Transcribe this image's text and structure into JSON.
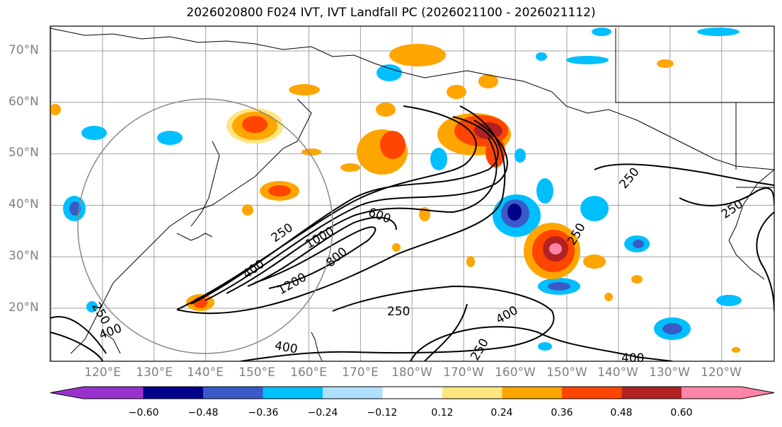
{
  "title": "2026020800 F024 IVT, IVT Landfall PC (2026021100 - 2026021112)",
  "lat_labels": [
    "70°N",
    "60°N",
    "50°N",
    "40°N",
    "30°N",
    "20°N"
  ],
  "lon_labels": [
    "120°E",
    "130°E",
    "140°E",
    "150°E",
    "160°E",
    "170°E",
    "180°W",
    "170°W",
    "160°W",
    "150°W",
    "140°W",
    "130°W",
    "120°W"
  ],
  "contour_labels": [
    "250",
    "400",
    "600",
    "800",
    "1000",
    "1200",
    "250",
    "250",
    "250",
    "400",
    "400",
    "250",
    "250",
    "400",
    "250",
    "400"
  ],
  "colorbar": {
    "colors": [
      "#9932CC",
      "#00008B",
      "#3A5AC8",
      "#00BFFF",
      "#ADDFFF",
      "#FFFFFF",
      "#FFE680",
      "#FFA500",
      "#FF4500",
      "#B22222",
      "#FF85A8"
    ],
    "tick_labels": [
      "−0.60",
      "−0.48",
      "−0.36",
      "−0.24",
      "−0.12",
      "0.12",
      "0.24",
      "0.36",
      "0.48",
      "0.60"
    ]
  }
}
